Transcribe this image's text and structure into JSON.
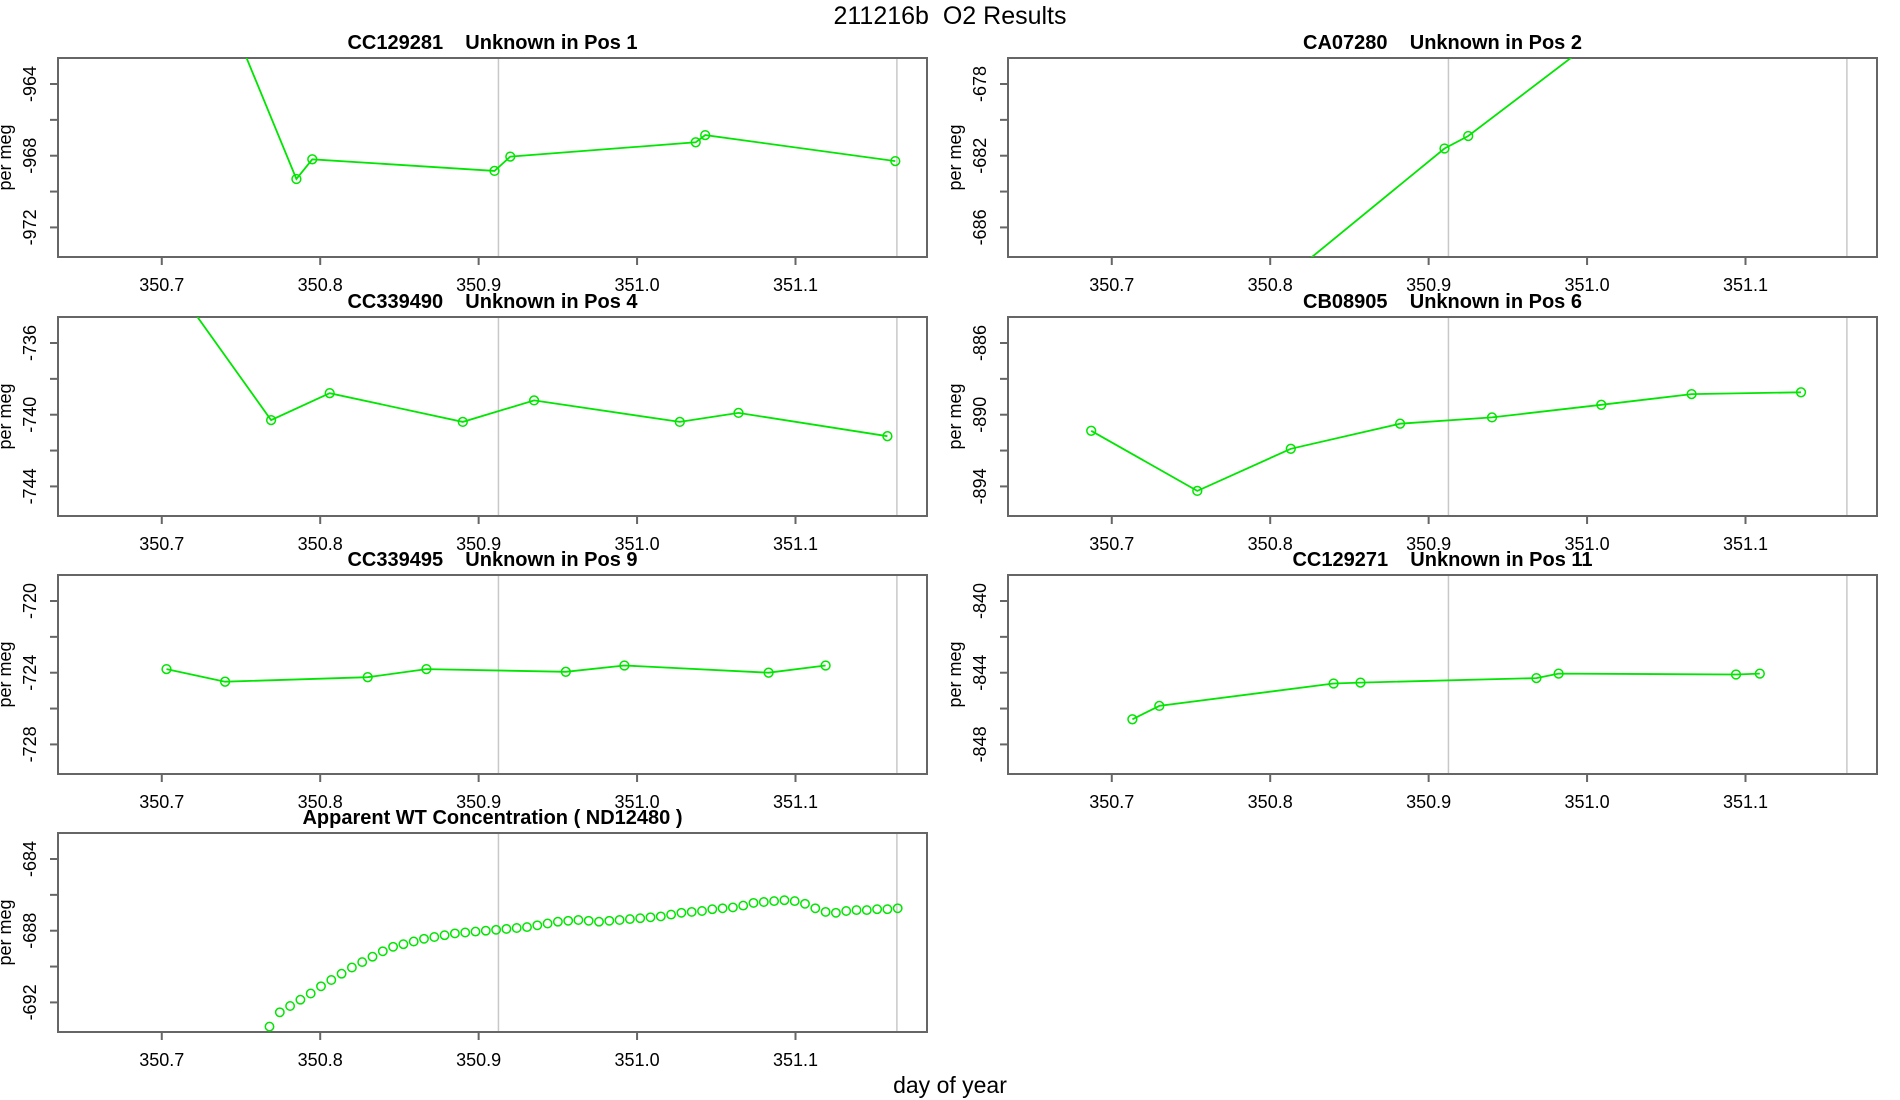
{
  "figure": {
    "title": "211216b  O2 Results",
    "xlabel": "day of year",
    "ylabel": "per meg",
    "background": "#ffffff",
    "series_color": "#00e600",
    "axis_color": "#666666",
    "text_color": "#000000",
    "reference_line_color": "#c8c8c8",
    "x_range": [
      350.6345,
      351.183
    ],
    "x_ticks": [
      350.7,
      350.8,
      350.9,
      351.0,
      351.1
    ],
    "x_tick_labels": [
      "350.7",
      "350.8",
      "350.9",
      "351.0",
      "351.1"
    ],
    "reference_lines_x": [
      350.9125,
      351.164
    ]
  },
  "chart_data": [
    {
      "id": "pos1",
      "type": "line",
      "row": 0,
      "col": 0,
      "title": "CC129281    Unknown in Pos 1",
      "ylabel": "per meg",
      "ylim": [
        -973.65,
        -962.55
      ],
      "yticks": [
        -972,
        -970,
        -968,
        -966,
        -964
      ],
      "ytick_labels": [
        "-972",
        "",
        "-968",
        "",
        "-964"
      ],
      "line": {
        "x": [
          350.73,
          350.785,
          350.795,
          350.91,
          350.92,
          351.037,
          351.043,
          351.163
        ],
        "y": [
          -957.5,
          -969.3,
          -968.2,
          -968.85,
          -968.05,
          -967.25,
          -966.85,
          -968.3
        ]
      },
      "points": {
        "x": [
          350.785,
          350.795,
          350.91,
          350.92,
          351.037,
          351.043,
          351.163
        ],
        "y": [
          -969.3,
          -968.2,
          -968.85,
          -968.05,
          -967.25,
          -966.85,
          -968.3
        ]
      }
    },
    {
      "id": "pos2",
      "type": "line",
      "row": 0,
      "col": 1,
      "title": "CA07280    Unknown in Pos 2",
      "ylabel": "per meg",
      "ylim": [
        -687.65,
        -676.55
      ],
      "yticks": [
        -686,
        -684,
        -682,
        -680,
        -678
      ],
      "ytick_labels": [
        "-686",
        "",
        "-682",
        "",
        "-678"
      ],
      "line": {
        "x": [
          350.78,
          350.91,
          350.925,
          351.05
        ],
        "y": [
          -691.0,
          -681.6,
          -680.9,
          -672.5
        ]
      },
      "points": {
        "x": [
          350.91,
          350.925
        ],
        "y": [
          -681.6,
          -680.9
        ]
      }
    },
    {
      "id": "pos4",
      "type": "line",
      "row": 1,
      "col": 0,
      "title": "CC339490    Unknown in Pos 4",
      "ylabel": "per meg",
      "ylim": [
        -745.65,
        -734.55
      ],
      "yticks": [
        -744,
        -742,
        -740,
        -738,
        -736
      ],
      "ytick_labels": [
        "-744",
        "",
        "-740",
        "",
        "-736"
      ],
      "line": {
        "x": [
          350.71,
          350.769,
          350.806,
          350.89,
          350.935,
          351.027,
          351.064,
          351.158
        ],
        "y": [
          -733.0,
          -740.3,
          -738.8,
          -740.4,
          -739.2,
          -740.4,
          -739.9,
          -741.2
        ]
      },
      "points": {
        "x": [
          350.769,
          350.806,
          350.89,
          350.935,
          351.027,
          351.064,
          351.158
        ],
        "y": [
          -740.3,
          -738.8,
          -740.4,
          -739.2,
          -740.4,
          -739.9,
          -741.2
        ]
      }
    },
    {
      "id": "pos6",
      "type": "line",
      "row": 1,
      "col": 1,
      "title": "CB08905    Unknown in Pos 6",
      "ylabel": "per meg",
      "ylim": [
        -895.65,
        -884.55
      ],
      "yticks": [
        -894,
        -892,
        -890,
        -888,
        -886
      ],
      "ytick_labels": [
        "-894",
        "",
        "-890",
        "",
        "-886"
      ],
      "line": {
        "x": [
          350.687,
          350.754,
          350.813,
          350.882,
          350.94,
          351.009,
          351.066,
          351.135
        ],
        "y": [
          -890.9,
          -894.25,
          -891.9,
          -890.5,
          -890.15,
          -889.45,
          -888.85,
          -888.75
        ]
      },
      "points": {
        "x": [
          350.687,
          350.754,
          350.813,
          350.882,
          350.94,
          351.009,
          351.066,
          351.135
        ],
        "y": [
          -890.9,
          -894.25,
          -891.9,
          -890.5,
          -890.15,
          -889.45,
          -888.85,
          -888.75
        ]
      }
    },
    {
      "id": "pos9",
      "type": "line",
      "row": 2,
      "col": 0,
      "title": "CC339495    Unknown in Pos 9",
      "ylabel": "per meg",
      "ylim": [
        -729.65,
        -718.55
      ],
      "yticks": [
        -728,
        -726,
        -724,
        -722,
        -720
      ],
      "ytick_labels": [
        "-728",
        "",
        "-724",
        "",
        "-720"
      ],
      "line": {
        "x": [
          350.703,
          350.74,
          350.83,
          350.867,
          350.955,
          350.992,
          351.083,
          351.119
        ],
        "y": [
          -723.8,
          -724.5,
          -724.25,
          -723.8,
          -723.95,
          -723.6,
          -724.0,
          -723.6
        ]
      },
      "points": {
        "x": [
          350.703,
          350.74,
          350.83,
          350.867,
          350.955,
          350.992,
          351.083,
          351.119
        ],
        "y": [
          -723.8,
          -724.5,
          -724.25,
          -723.8,
          -723.95,
          -723.6,
          -724.0,
          -723.6
        ]
      }
    },
    {
      "id": "pos11",
      "type": "line",
      "row": 2,
      "col": 1,
      "title": "CC129271    Unknown in Pos 11",
      "ylabel": "per meg",
      "ylim": [
        -849.65,
        -838.55
      ],
      "yticks": [
        -848,
        -846,
        -844,
        -842,
        -840
      ],
      "ytick_labels": [
        "-848",
        "",
        "-844",
        "",
        "-840"
      ],
      "line": {
        "x": [
          350.713,
          350.73,
          350.84,
          350.857,
          350.968,
          350.982,
          351.094,
          351.109
        ],
        "y": [
          -846.6,
          -845.85,
          -844.6,
          -844.55,
          -844.3,
          -844.05,
          -844.1,
          -844.05
        ]
      },
      "points": {
        "x": [
          350.713,
          350.73,
          350.84,
          350.857,
          350.968,
          350.982,
          351.094,
          351.109
        ],
        "y": [
          -846.6,
          -845.85,
          -844.6,
          -844.55,
          -844.3,
          -844.05,
          -844.1,
          -844.05
        ]
      }
    },
    {
      "id": "wt",
      "type": "scatter",
      "row": 3,
      "col": 0,
      "title": "Apparent WT Concentration ( ND12480 )",
      "ylabel": "per meg",
      "ylim": [
        -693.65,
        -682.55
      ],
      "yticks": [
        -692,
        -690,
        -688,
        -686,
        -684
      ],
      "ytick_labels": [
        "-692",
        "",
        "-688",
        "",
        "-684"
      ],
      "line": {
        "x": [],
        "y": []
      },
      "points": {
        "x": [
          350.768,
          350.7745,
          350.781,
          350.7875,
          350.794,
          350.8005,
          350.807,
          350.8135,
          350.82,
          350.8265,
          350.833,
          350.8395,
          350.846,
          350.8525,
          350.859,
          350.8655,
          350.872,
          350.8785,
          350.885,
          350.8915,
          350.898,
          350.9045,
          350.911,
          350.9175,
          350.924,
          350.9305,
          350.937,
          350.9435,
          350.95,
          350.9565,
          350.963,
          350.9695,
          350.976,
          350.9825,
          350.989,
          350.9955,
          351.002,
          351.0085,
          351.015,
          351.0215,
          351.028,
          351.0345,
          351.041,
          351.0475,
          351.054,
          351.0605,
          351.067,
          351.0735,
          351.08,
          351.0865,
          351.093,
          351.0995,
          351.106,
          351.1125,
          351.119,
          351.1255,
          351.132,
          351.1385,
          351.145,
          351.1515,
          351.158,
          351.1645
        ],
        "y": [
          -693.35,
          -692.55,
          -692.2,
          -691.85,
          -691.5,
          -691.1,
          -690.75,
          -690.4,
          -690.05,
          -689.75,
          -689.45,
          -689.15,
          -688.9,
          -688.75,
          -688.6,
          -688.45,
          -688.35,
          -688.25,
          -688.15,
          -688.1,
          -688.05,
          -688.0,
          -687.95,
          -687.9,
          -687.85,
          -687.8,
          -687.7,
          -687.6,
          -687.5,
          -687.45,
          -687.4,
          -687.45,
          -687.5,
          -687.45,
          -687.4,
          -687.35,
          -687.3,
          -687.25,
          -687.2,
          -687.1,
          -687.0,
          -686.95,
          -686.9,
          -686.8,
          -686.75,
          -686.7,
          -686.6,
          -686.45,
          -686.4,
          -686.35,
          -686.3,
          -686.35,
          -686.5,
          -686.75,
          -686.95,
          -687.0,
          -686.9,
          -686.85,
          -686.85,
          -686.8,
          -686.8,
          -686.75
        ]
      }
    }
  ]
}
